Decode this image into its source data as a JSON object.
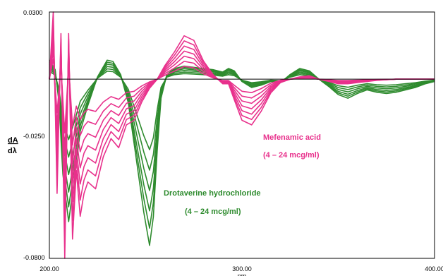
{
  "chart_data": {
    "type": "line",
    "xlim": [
      200,
      400
    ],
    "ylim": [
      -0.08,
      0.03
    ],
    "x_ticks": [
      "200.00",
      "300.00",
      "400.00"
    ],
    "x_tick_values": [
      200,
      300,
      400
    ],
    "y_ticks": [
      "0.0300",
      "-0.0250",
      "-0.0800"
    ],
    "y_tick_values": [
      0.03,
      -0.025,
      -0.08
    ],
    "xlabel": "nm",
    "ylabel_num": "dA",
    "ylabel_den": "dλ",
    "zero_line": 0,
    "grid": false,
    "annotations": [
      {
        "text": "Mefenamic acid",
        "color": "#e8318c"
      },
      {
        "text": "(4 – 24 mcg/ml)",
        "color": "#e8318c"
      },
      {
        "text": "Drotaverine hydrochloride",
        "color": "#2e8b2e"
      },
      {
        "text": "(4 – 24 mcg/ml)",
        "color": "#2e8b2e"
      }
    ],
    "series": [
      {
        "color": "#2e8b2e",
        "scales": [
          0.45,
          0.58,
          0.71,
          0.84,
          0.95,
          1.06
        ],
        "x": [
          200,
          203,
          205,
          207,
          210,
          213,
          216,
          220,
          225,
          230,
          233,
          237,
          241,
          245,
          249,
          252,
          254,
          256,
          258,
          261,
          265,
          270,
          275,
          280,
          285,
          290,
          293,
          296,
          300,
          305,
          310,
          315,
          320,
          325,
          330,
          335,
          340,
          345,
          350,
          355,
          360,
          365,
          370,
          375,
          380,
          385,
          390,
          395,
          400
        ],
        "y": [
          0.008,
          0.004,
          -0.01,
          -0.04,
          -0.06,
          -0.042,
          -0.022,
          -0.011,
          0.001,
          0.008,
          0.0075,
          0.002,
          -0.01,
          -0.033,
          -0.056,
          -0.07,
          -0.058,
          -0.03,
          -0.008,
          0.002,
          0.0045,
          0.0055,
          0.005,
          0.0045,
          0.004,
          0.003,
          0.0045,
          0.0035,
          -0.001,
          -0.0035,
          -0.0025,
          -0.001,
          -0.0015,
          0.002,
          0.0045,
          0.0035,
          0.0,
          -0.003,
          -0.0065,
          -0.008,
          -0.006,
          -0.0045,
          -0.0055,
          -0.006,
          -0.0055,
          -0.0045,
          -0.0035,
          -0.002,
          -0.001
        ]
      },
      {
        "color": "#e8318c",
        "scales": [
          0.3,
          0.42,
          0.54,
          0.66,
          0.78,
          0.9,
          1.02
        ],
        "x": [
          200,
          202,
          204,
          206,
          208,
          210,
          212,
          214,
          216,
          218,
          220,
          224,
          228,
          232,
          236,
          240,
          244,
          248,
          252,
          256,
          260,
          265,
          270,
          275,
          280,
          285,
          290,
          293,
          296,
          300,
          305,
          310,
          315,
          320,
          325,
          330,
          335,
          340,
          345,
          350,
          355,
          360,
          365,
          370,
          380,
          390,
          400
        ],
        "y": [
          0.0,
          0.03,
          -0.05,
          0.02,
          -0.08,
          0.02,
          -0.07,
          -0.04,
          -0.06,
          -0.05,
          -0.045,
          -0.048,
          -0.034,
          -0.026,
          -0.03,
          -0.02,
          -0.018,
          -0.01,
          -0.004,
          0.0,
          0.006,
          0.012,
          0.019,
          0.017,
          0.008,
          0.002,
          -0.002,
          -0.002,
          -0.009,
          -0.018,
          -0.02,
          -0.014,
          -0.006,
          -0.0015,
          0.0,
          0.001,
          0.0015,
          0.0,
          -0.001,
          -0.002,
          -0.002,
          -0.0015,
          -0.001,
          -0.0005,
          0.0,
          0.0,
          0.0
        ]
      }
    ]
  }
}
